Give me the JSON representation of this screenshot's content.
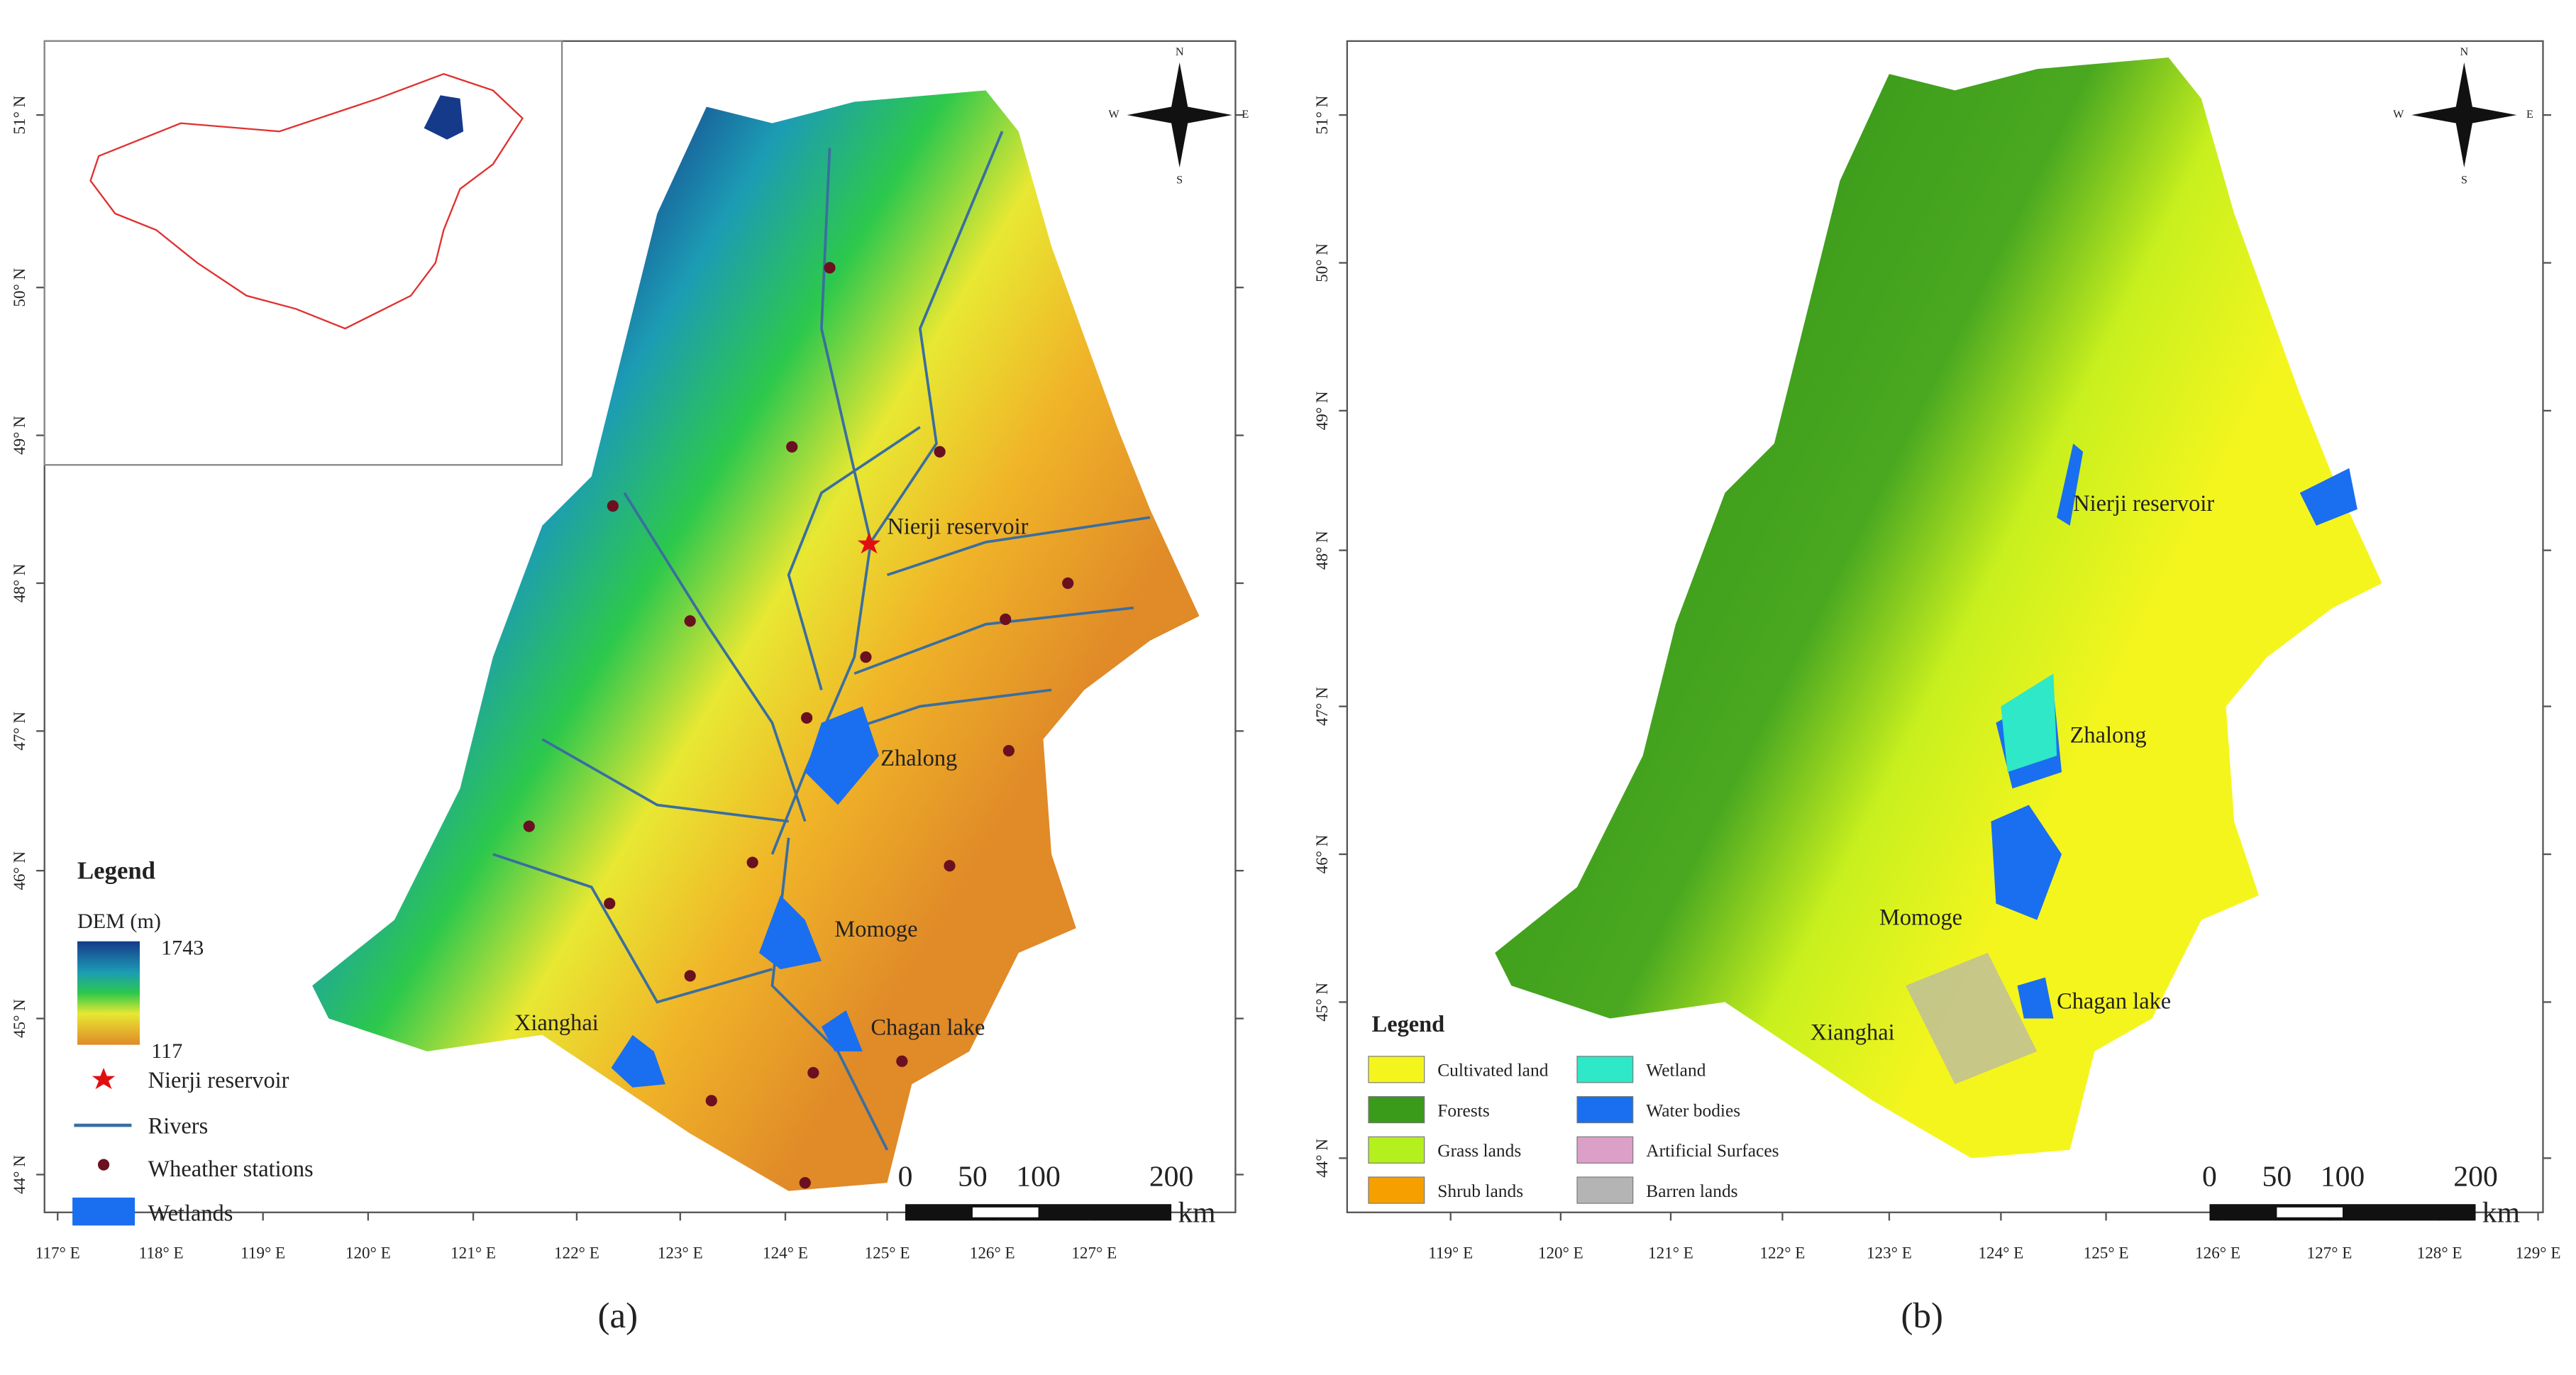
{
  "panels": [
    {
      "caption": "(a)",
      "x_labels": [
        "117° E",
        "118° E",
        "119° E",
        "120° E",
        "121° E",
        "122° E",
        "123° E",
        "124° E",
        "125° E",
        "126° E",
        "127° E"
      ],
      "y_labels": [
        "51° N",
        "50° N",
        "49° N",
        "48° N",
        "47° N",
        "46° N",
        "45° N",
        "44° N"
      ],
      "compass": [
        "N",
        "E",
        "S",
        "W"
      ],
      "places": [
        "Nierji reservoir",
        "Zhalong",
        "Momoge",
        "Chagan lake",
        "Xianghai"
      ],
      "scale_bar": {
        "ticks": [
          "0",
          "50",
          "100",
          "200"
        ],
        "unit": "km"
      },
      "legend": {
        "title": "Legend",
        "dem_title": "DEM (m)",
        "dem_max": "1743",
        "dem_min": "117",
        "items": [
          {
            "label": "Nierji reservoir",
            "color": "#e01010"
          },
          {
            "label": "Rivers",
            "color": "#3a6ea0"
          },
          {
            "label": "Wheather stations",
            "color": "#6a1020"
          },
          {
            "label": "Wetlands",
            "color": "#1a6ef0"
          }
        ]
      }
    },
    {
      "caption": "(b)",
      "x_labels": [
        "119° E",
        "120° E",
        "121° E",
        "122° E",
        "123° E",
        "124° E",
        "125° E",
        "126° E",
        "127° E",
        "128° E",
        "129° E"
      ],
      "y_labels": [
        "51° N",
        "50° N",
        "49° N",
        "48° N",
        "47° N",
        "46° N",
        "45° N",
        "44° N"
      ],
      "compass": [
        "N",
        "E",
        "S",
        "W"
      ],
      "places": [
        "Nierji reservoir",
        "Zhalong",
        "Momoge",
        "Chagan lake",
        "Xianghai"
      ],
      "scale_bar": {
        "ticks": [
          "0",
          "50",
          "100",
          "200"
        ],
        "unit": "km"
      },
      "legend": {
        "title": "Legend",
        "items": [
          {
            "label": "Cultivated land",
            "color": "#f5f51e"
          },
          {
            "label": "Wetland",
            "color": "#2ee8c8"
          },
          {
            "label": "Forests",
            "color": "#3a9a1a"
          },
          {
            "label": "Water bodies",
            "color": "#1a6ef0"
          },
          {
            "label": "Grass lands",
            "color": "#b4f01e"
          },
          {
            "label": "Artificial Surfaces",
            "color": "#dca0c8"
          },
          {
            "label": "Shrub lands",
            "color": "#f5a000"
          },
          {
            "label": "Barren lands",
            "color": "#b4b4b4"
          }
        ]
      }
    }
  ]
}
